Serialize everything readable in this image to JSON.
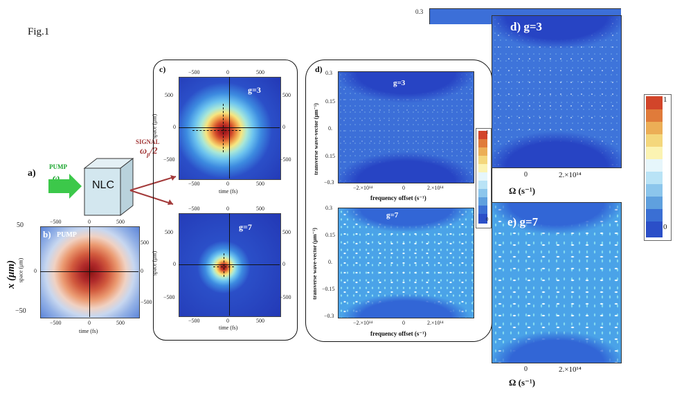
{
  "fig_label": "Fig.1",
  "scheme": {
    "panel_label": "a)",
    "pump_label": "PUMP",
    "pump_freq": "ω",
    "pump_freq_sub": "p",
    "crystal_label": "NLC",
    "signal_label": "SIGNAL",
    "signal_freq": "ω",
    "signal_freq_sub": "p",
    "signal_freq_div": "/2"
  },
  "panel_b": {
    "label": "b)",
    "title": "PUMP",
    "x_axis_label": "time (fs)",
    "y_axis_label": "space (μm)",
    "outer_y_label": "x (μm)",
    "outer_y_top": "50",
    "outer_y_bottom": "−50",
    "x_ticks_bottom": [
      "−500",
      "0",
      "500"
    ],
    "x_ticks_top": [
      "−500",
      "0",
      "500"
    ],
    "y_ticks_left": [
      "0"
    ],
    "y_ticks_right": [
      "500",
      "0",
      "−500"
    ]
  },
  "panel_c": {
    "label": "c)",
    "upper": {
      "g_label": "g=3",
      "x_axis_label": "time (fs)",
      "y_axis_label": "space (μm)",
      "x_ticks": [
        "−500",
        "0",
        "500"
      ],
      "y_ticks": [
        "500",
        "0",
        "−500"
      ]
    },
    "lower": {
      "g_label": "g=7",
      "x_axis_label": "time (fs)",
      "y_axis_label": "space (μm)",
      "x_ticks": [
        "−500",
        "0",
        "500"
      ],
      "y_ticks": [
        "500",
        "0",
        "−500"
      ]
    }
  },
  "panel_d": {
    "label": "d)",
    "upper": {
      "g_label": "g=3",
      "x_axis_label": "frequency offset (s⁻¹)",
      "y_axis_label": "transverse wave-vector  (μm⁻¹)",
      "x_ticks": [
        "−2.×10¹⁴",
        "0",
        "2.×10¹⁴"
      ],
      "y_ticks": [
        "0.3",
        "0.15",
        "0.",
        "0.15",
        "−0.3"
      ]
    },
    "lower": {
      "g_label": "g=7",
      "x_axis_label": "frequency offset (s⁻¹)",
      "y_axis_label": "transverse wave-vector  (μm⁻¹)",
      "x_ticks": [
        "−2.×10¹⁴",
        "0",
        "2.×10¹⁴"
      ],
      "y_ticks": [
        "0.3",
        "0.15",
        "0.",
        "−0.15",
        "−0.3"
      ]
    },
    "colorbar_ticks": [
      "1",
      "0"
    ]
  },
  "panel_d_zoom": {
    "label": "d) g=3",
    "y_tick_top": "0.3",
    "x_ticks": [
      "0",
      "2.×10¹⁴"
    ],
    "x_axis_label": "Ω (s⁻¹)"
  },
  "panel_e_zoom": {
    "label": "e) g=7",
    "x_ticks": [
      "0",
      "2.×10¹⁴"
    ],
    "x_axis_label": "Ω (s⁻¹)"
  },
  "right_colorbar": {
    "ticks": [
      "1",
      "0"
    ],
    "colors": [
      "#d2452a",
      "#e07b3a",
      "#ecae56",
      "#f4d77c",
      "#fbf3b2",
      "#e6f6fb",
      "#b9e3f6",
      "#8cc6ec",
      "#5fa0de",
      "#3a6fd4",
      "#2b4fc8"
    ]
  },
  "colors": {
    "pump_arrow": "#3cc84a",
    "pump_text": "#1aa52e",
    "signal_text": "#a33a3a",
    "signal_arrow": "#a33a3a",
    "crystal_face": "#d3e7ef"
  }
}
